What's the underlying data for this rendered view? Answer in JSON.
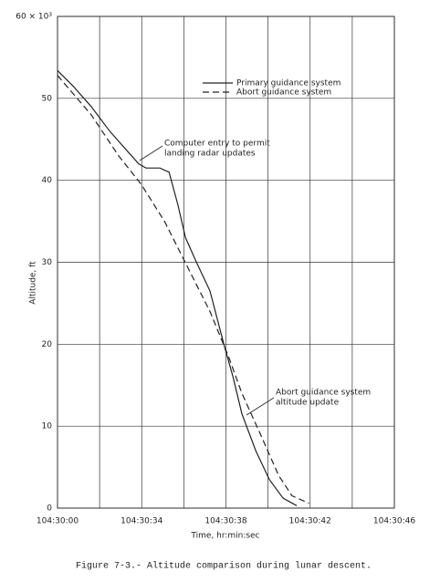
{
  "chart_data": {
    "type": "line",
    "categories": [
      "104:30:00",
      null,
      "104:30:34",
      null,
      "104:30:38",
      null,
      "104:30:42",
      null,
      "104:30:46"
    ],
    "x_label": "Time, hr:min:sec",
    "y_label": "Altitude, ft",
    "caption": "Figure 7-3.- Altitude comparison during lunar descent.",
    "ylim": [
      0,
      60
    ],
    "yticks": [
      0,
      10,
      20,
      30,
      40,
      50,
      {
        "value": 60,
        "label": "60 × 10³"
      }
    ],
    "grid": true,
    "series": [
      {
        "name": "Primary guidance system",
        "color": "#222",
        "dash": false,
        "x": [
          0,
          0.37,
          0.8,
          1.24,
          1.67,
          1.93,
          2.1,
          2.43,
          2.65,
          2.86,
          3.04,
          3.3,
          3.62,
          3.95,
          4.17,
          4.38,
          4.71,
          5.03,
          5.36,
          5.68
        ],
        "values": [
          53.4,
          51.5,
          49,
          46,
          43.5,
          42,
          41.5,
          41.5,
          41,
          37,
          33,
          30,
          26.5,
          20,
          16,
          11.5,
          7,
          3.5,
          1.2,
          0.3
        ]
      },
      {
        "name": "Abort guidance system",
        "color": "#222",
        "dash": true,
        "x": [
          0,
          0.8,
          1.45,
          1.99,
          2.54,
          3.08,
          3.62,
          4.06,
          4.38,
          4.82,
          5.25,
          5.57,
          5.97
        ],
        "values": [
          52.8,
          48,
          43,
          39.5,
          35,
          29.5,
          24,
          18.5,
          14,
          9,
          4,
          1.5,
          0.6
        ]
      }
    ],
    "annotations": [
      {
        "lines": [
          "Computer entry to permit",
          "landing radar updates"
        ]
      },
      {
        "lines": [
          "Abort guidance system",
          "altitude update"
        ]
      }
    ]
  }
}
